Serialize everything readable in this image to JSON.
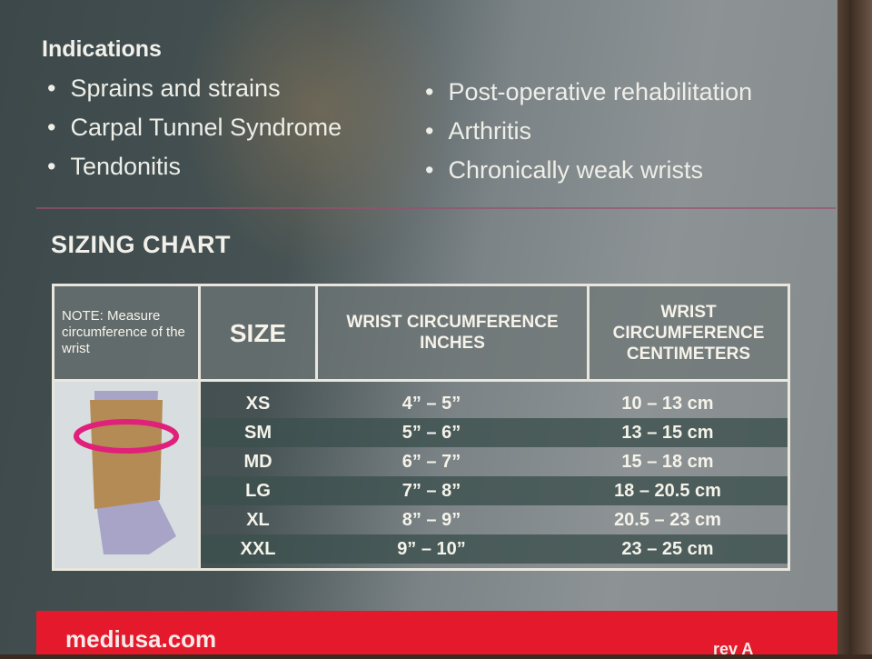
{
  "indications": {
    "title": "Indications",
    "left": [
      "Sprains and strains",
      "Carpal Tunnel Syndrome",
      "Tendonitis"
    ],
    "right": [
      "Post-operative rehabilitation",
      "Arthritis",
      "Chronically weak wrists"
    ]
  },
  "sizing": {
    "title": "SIZING CHART",
    "note": "NOTE: Measure circumference of the wrist",
    "headers": {
      "size": "SIZE",
      "inches": "WRIST CIRCUMFERENCE INCHES",
      "cm": "WRIST CIRCUMFERENCE CENTIMETERS"
    },
    "rows": [
      {
        "size": "XS",
        "inches": "4” – 5”",
        "cm": "10 – 13 cm"
      },
      {
        "size": "SM",
        "inches": "5” – 6”",
        "cm": "13 – 15 cm"
      },
      {
        "size": "MD",
        "inches": "6” – 7”",
        "cm": "15 – 18 cm"
      },
      {
        "size": "LG",
        "inches": "7” – 8”",
        "cm": "18 – 20.5 cm"
      },
      {
        "size": "XL",
        "inches": "8” – 9”",
        "cm": "20.5 – 23 cm"
      },
      {
        "size": "XXL",
        "inches": "9” – 10”",
        "cm": "23 – 25 cm"
      }
    ]
  },
  "footer": {
    "url": "mediusa.com",
    "rev": "rev A"
  },
  "colors": {
    "brand_red": "#e41a2c",
    "arrow_pink": "#e0207a"
  }
}
